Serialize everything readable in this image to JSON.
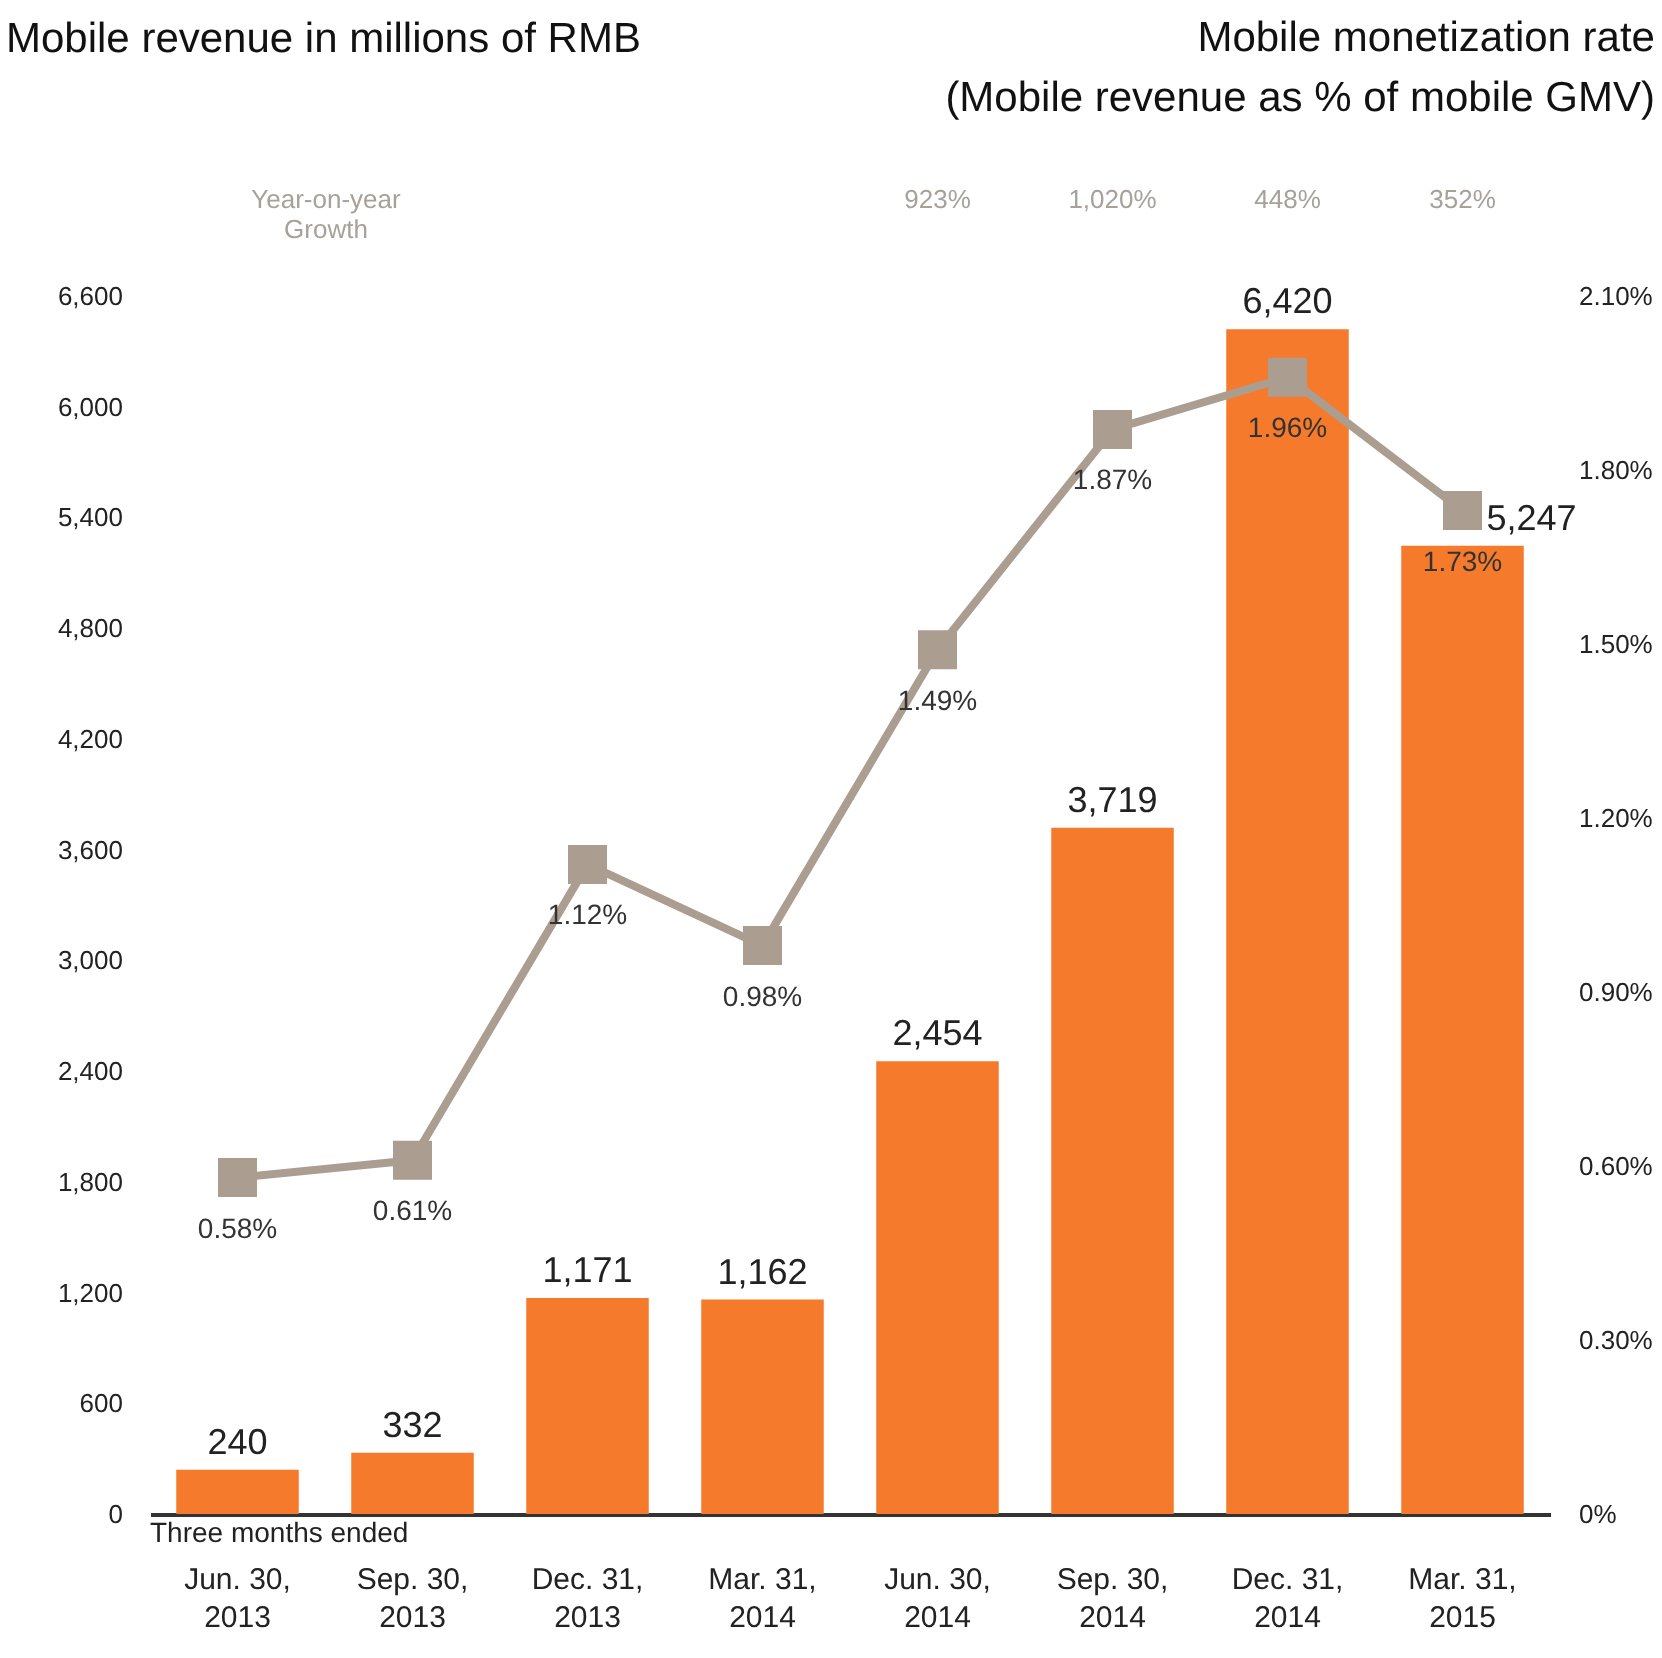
{
  "chart_data": {
    "type": "bar",
    "y2label": "Mobile monetization rate\n(Mobile revenue as % of mobile GMV)",
    "categories": [
      "Jun. 30, 2013",
      "Sep. 30, 2013",
      "Dec. 31, 2013",
      "Mar. 31, 2014",
      "Jun. 30, 2014",
      "Sep. 30, 2014",
      "Dec. 31, 2014",
      "Mar. 31, 2015"
    ],
    "series": [
      {
        "color": "#f57a2c",
        "values": [
          240,
          332,
          1171,
          1162,
          2454,
          3719,
          6420,
          5247
        ],
        "value_labels": [
          "240",
          "332",
          "1,171",
          "1,162",
          "2,454",
          "3,719",
          "6,420",
          "5,247"
        ]
      },
      {
        "type": "line",
        "axis": "y2",
        "color": "#ab9d90",
        "values": [
          0.58,
          0.61,
          1.12,
          0.98,
          1.49,
          1.87,
          1.96,
          1.73
        ],
        "value_labels": [
          "0.58%",
          "0.61%",
          "1.12%",
          "0.98%",
          "1.49%",
          "1.87%",
          "1.96%",
          "1.73%"
        ]
      }
    ],
    "ylim": [
      0,
      6600
    ],
    "yticks": [
      0,
      600,
      {
        "value": 1200,
        "label": "1,200"
      },
      {
        "value": 1800,
        "label": "1,800"
      },
      {
        "value": 2400,
        "label": "2,400"
      },
      {
        "value": 3000,
        "label": "3,000"
      },
      {
        "value": 3600,
        "label": "3,600"
      },
      {
        "value": 4200,
        "label": "4,200"
      },
      {
        "value": 4800,
        "label": "4,800"
      },
      {
        "value": 5400,
        "label": "5,400"
      },
      {
        "value": 6000,
        "label": "6,000"
      },
      {
        "value": 6600,
        "label": "6,600"
      }
    ],
    "y2lim": [
      0,
      2.1
    ],
    "y2ticks": [
      {
        "value": 0,
        "label": "0%"
      },
      {
        "value": 0.3,
        "label": "0.30%"
      },
      {
        "value": 0.6,
        "label": "0.60%"
      },
      {
        "value": 0.9,
        "label": "0.90%"
      },
      {
        "value": 1.2,
        "label": "1.20%"
      },
      {
        "value": 1.5,
        "label": "1.50%"
      },
      {
        "value": 1.8,
        "label": "1.80%"
      },
      {
        "value": 2.1,
        "label": "2.10%"
      }
    ],
    "marker": "square",
    "line_style": "solid",
    "annotations": [
      "Mobile revenue in millions of RMB",
      "Year-on-year Growth",
      "Three months ended",
      "923%",
      "1,020%",
      "448%",
      "352%"
    ]
  }
}
